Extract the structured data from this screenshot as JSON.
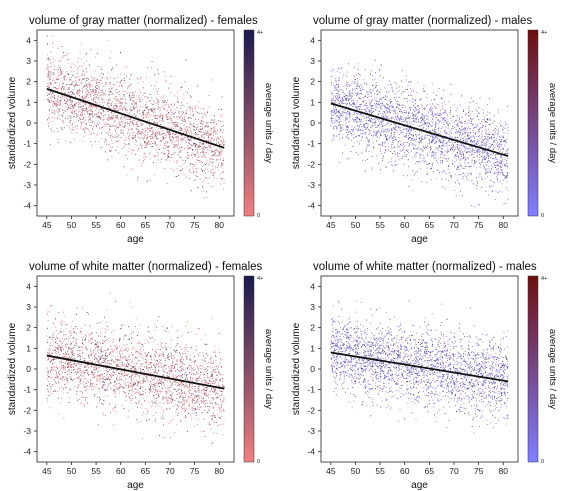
{
  "chart_data": [
    {
      "type": "scatter",
      "title": "volume of gray matter (normalized) - females",
      "xlabel": "age",
      "ylabel": "standardized volume",
      "xlim": [
        43,
        83
      ],
      "ylim": [
        -4.5,
        4.5
      ],
      "xticks": [
        "45",
        "50",
        "55",
        "60",
        "65",
        "70",
        "75",
        "80"
      ],
      "yticks": [
        "4",
        "3",
        "2",
        "1",
        "0",
        "-1",
        "-2",
        "-3",
        "-4"
      ],
      "colorbar": {
        "label": "average units / day",
        "top_label": "4+",
        "bottom_label": "0",
        "low_color": "#f08080",
        "high_color": "#1a1a4e"
      },
      "trend_line": {
        "x": [
          45,
          81
        ],
        "y": [
          1.65,
          -1.2
        ]
      },
      "point_cloud": {
        "x_range": [
          45,
          81
        ],
        "y_spread_sd": 0.95,
        "color_low": "#f08a8a",
        "color_high": "#2a1a4a"
      }
    },
    {
      "type": "scatter",
      "title": "volume of gray matter (normalized) - males",
      "xlabel": "age",
      "ylabel": "standardized volume",
      "xlim": [
        43,
        83
      ],
      "ylim": [
        -4.5,
        4.5
      ],
      "xticks": [
        "45",
        "50",
        "55",
        "60",
        "65",
        "70",
        "75",
        "80"
      ],
      "yticks": [
        "4",
        "3",
        "2",
        "1",
        "0",
        "-1",
        "-2",
        "-3",
        "-4"
      ],
      "colorbar": {
        "label": "average units / day",
        "top_label": "4+",
        "bottom_label": "0",
        "low_color": "#8080ff",
        "high_color": "#6b0f0f"
      },
      "trend_line": {
        "x": [
          45,
          81
        ],
        "y": [
          0.95,
          -1.6
        ]
      },
      "point_cloud": {
        "x_range": [
          45,
          81
        ],
        "y_spread_sd": 0.95,
        "color_low": "#8a7cf0",
        "color_high": "#2a1a4a"
      }
    },
    {
      "type": "scatter",
      "title": "volume of white matter (normalized) - females",
      "xlabel": "age",
      "ylabel": "standardized volume",
      "xlim": [
        43,
        83
      ],
      "ylim": [
        -4.5,
        4.5
      ],
      "xticks": [
        "45",
        "50",
        "55",
        "60",
        "65",
        "70",
        "75",
        "80"
      ],
      "yticks": [
        "4",
        "3",
        "2",
        "1",
        "0",
        "-1",
        "-2",
        "-3",
        "-4"
      ],
      "colorbar": {
        "label": "average units / day",
        "top_label": "4+",
        "bottom_label": "0",
        "low_color": "#f08080",
        "high_color": "#1a1a4e"
      },
      "trend_line": {
        "x": [
          45,
          81
        ],
        "y": [
          0.65,
          -0.95
        ]
      },
      "point_cloud": {
        "x_range": [
          45,
          81
        ],
        "y_spread_sd": 0.95,
        "color_low": "#f08a8a",
        "color_high": "#2a1a4a"
      }
    },
    {
      "type": "scatter",
      "title": "volume of white matter (normalized) - males",
      "xlabel": "age",
      "ylabel": "standardized volume",
      "xlim": [
        43,
        83
      ],
      "ylim": [
        -4.5,
        4.5
      ],
      "xticks": [
        "45",
        "50",
        "55",
        "60",
        "65",
        "70",
        "75",
        "80"
      ],
      "yticks": [
        "4",
        "3",
        "2",
        "1",
        "0",
        "-1",
        "-2",
        "-3",
        "-4"
      ],
      "colorbar": {
        "label": "average units / day",
        "top_label": "4+",
        "bottom_label": "0",
        "low_color": "#8080ff",
        "high_color": "#6b0f0f"
      },
      "trend_line": {
        "x": [
          45,
          81
        ],
        "y": [
          0.8,
          -0.6
        ]
      },
      "point_cloud": {
        "x_range": [
          45,
          81
        ],
        "y_spread_sd": 0.95,
        "color_low": "#8a7cf0",
        "color_high": "#2a1a4a"
      }
    }
  ]
}
